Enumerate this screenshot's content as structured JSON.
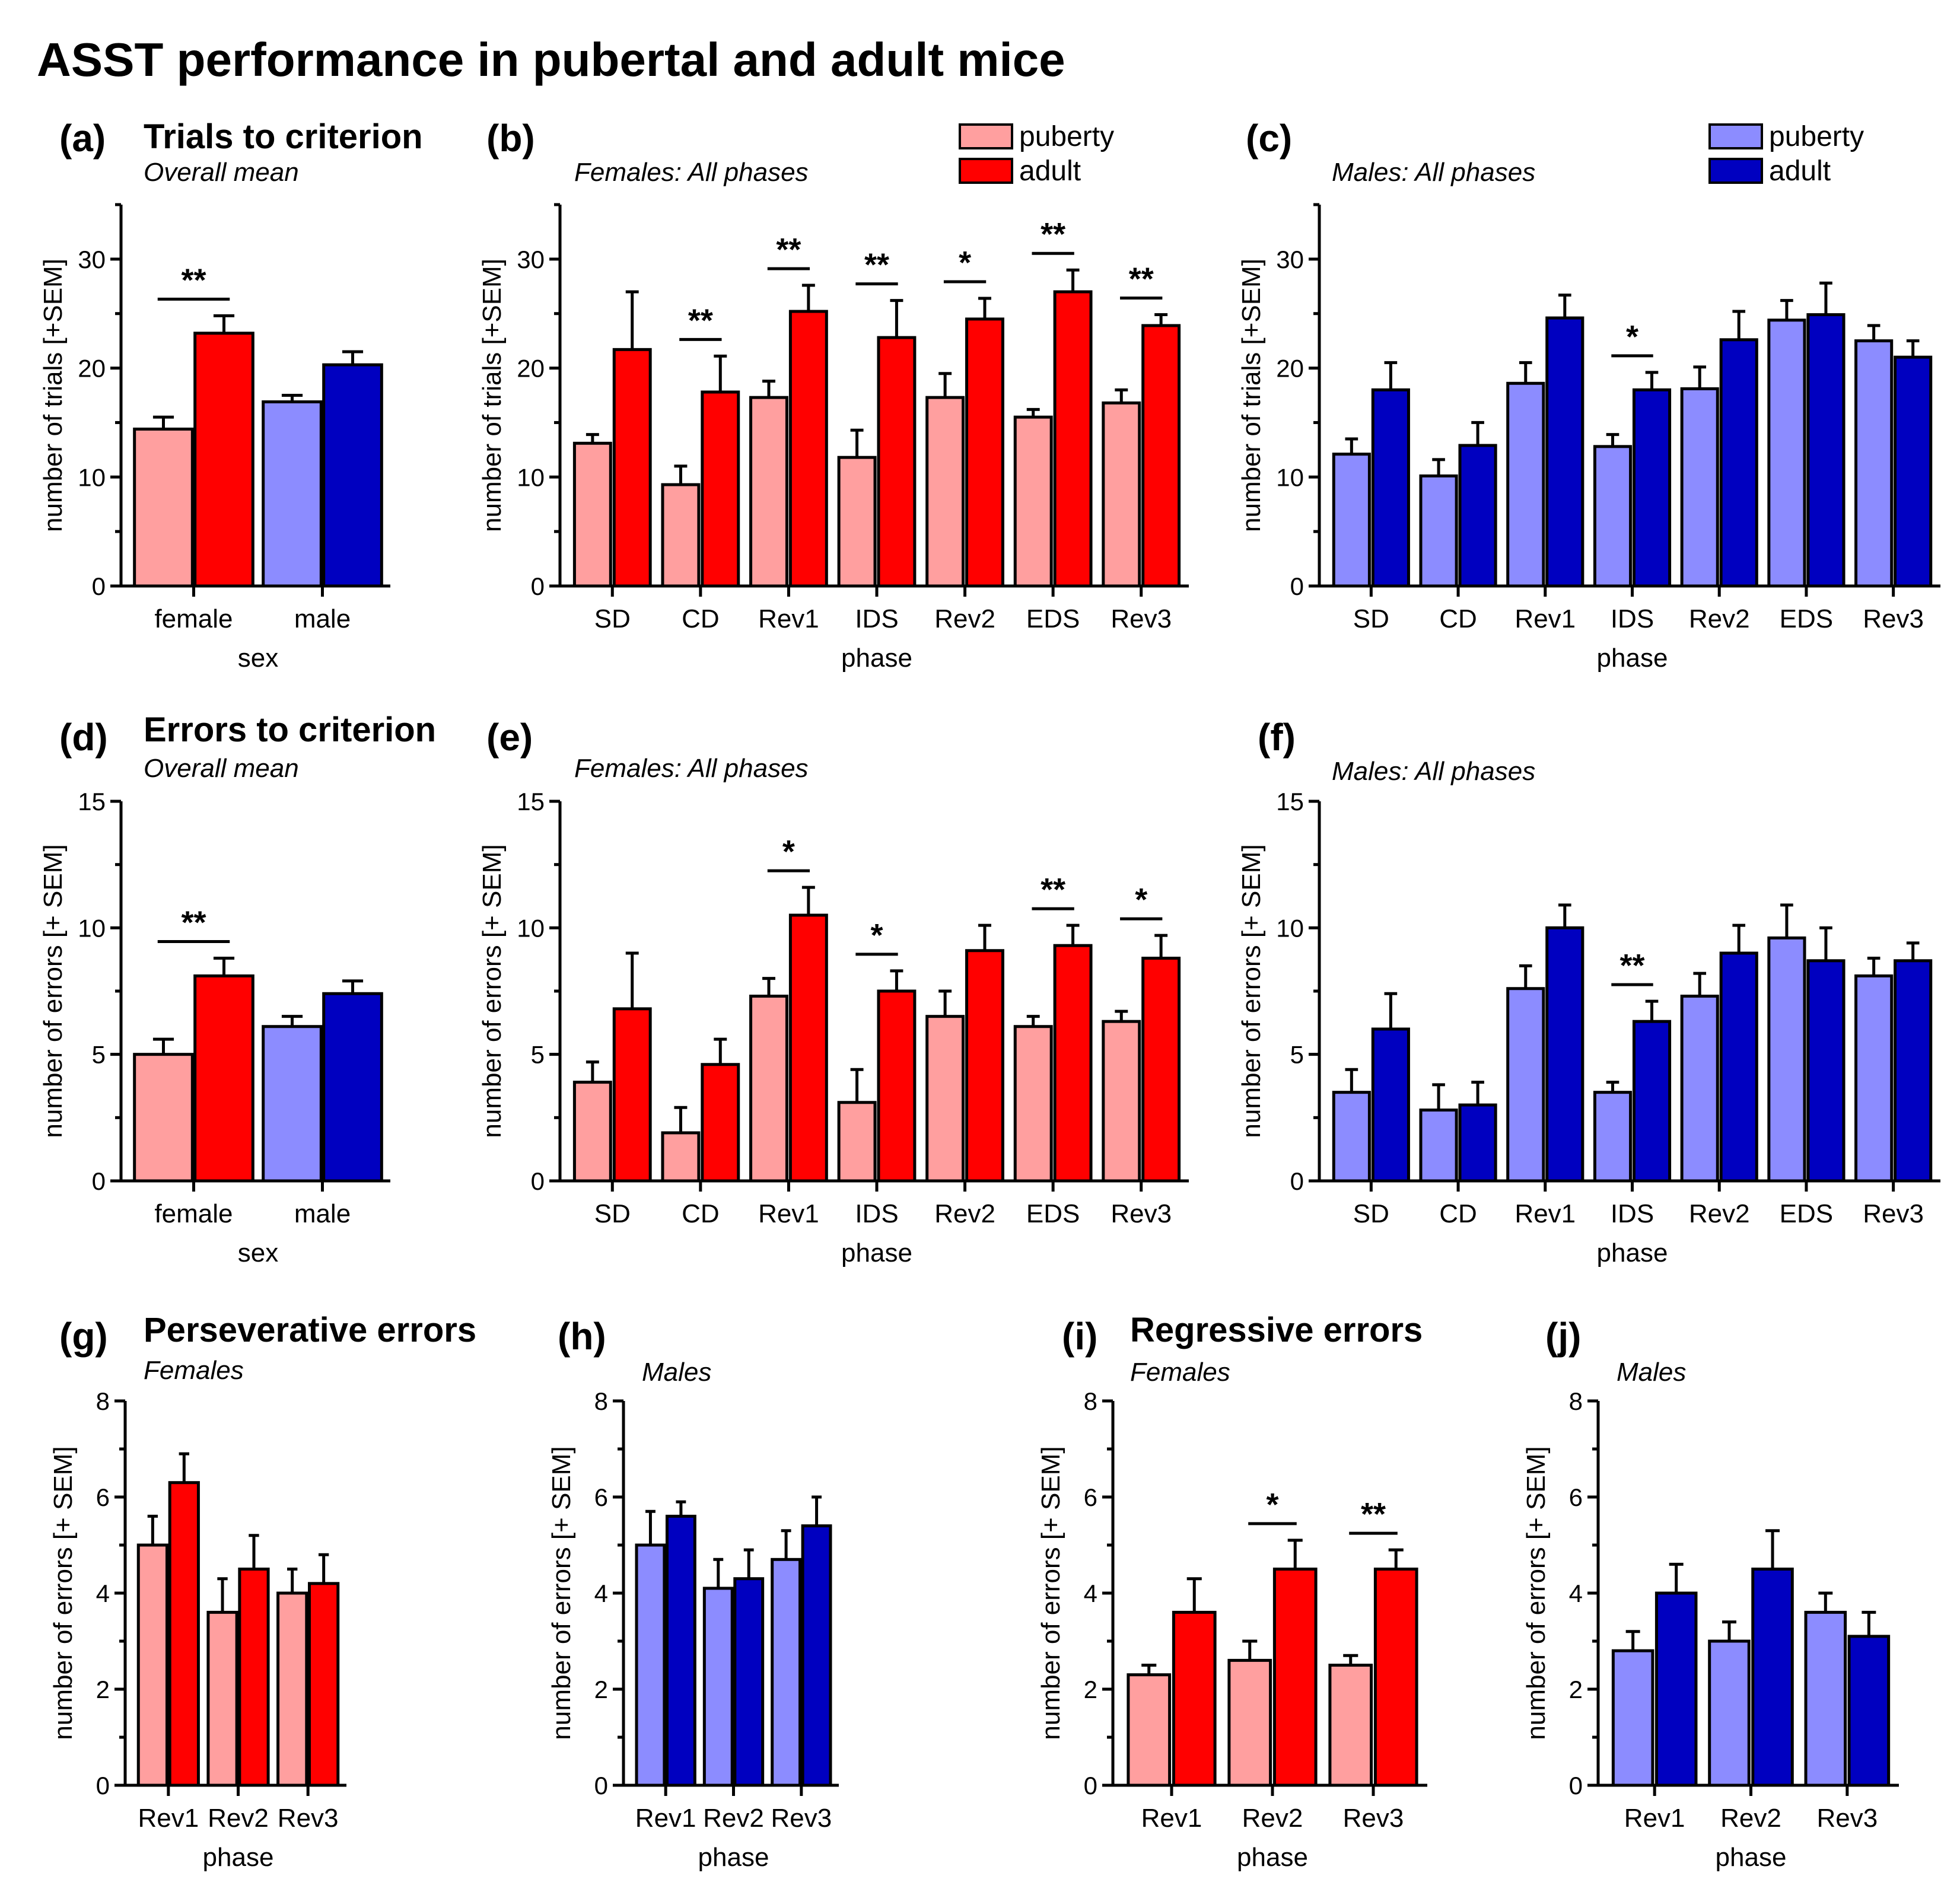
{
  "title": "ASST performance in pubertal and adult mice",
  "colors": {
    "female_puberty": "#ff9f9f",
    "female_adult": "#ff0000",
    "male_puberty": "#8c8cff",
    "male_adult": "#0000c0"
  },
  "legends": [
    {
      "panel": "b",
      "entries": [
        {
          "label": "puberty",
          "color_key": "female_puberty"
        },
        {
          "label": "adult",
          "color_key": "female_adult"
        }
      ]
    },
    {
      "panel": "c",
      "entries": [
        {
          "label": "puberty",
          "color_key": "male_puberty"
        },
        {
          "label": "adult",
          "color_key": "male_adult"
        }
      ]
    }
  ],
  "section_titles": [
    {
      "panel": "a",
      "text": "Trials to criterion"
    },
    {
      "panel": "d",
      "text": "Errors to criterion"
    },
    {
      "panel": "g",
      "text": "Perseverative errors"
    },
    {
      "panel": "i",
      "text": "Regressive errors"
    }
  ],
  "chart_data": [
    {
      "id": "a",
      "letter": "(a)",
      "type": "bar",
      "subtitle": "Overall mean",
      "xlabel": "sex",
      "ylabel": "number of trials [+SEM]",
      "ylim": [
        0,
        35
      ],
      "yticks": [
        0,
        10,
        20,
        30
      ],
      "categories": [
        "female",
        "male"
      ],
      "series": [
        {
          "name": "puberty",
          "values": [
            14.4,
            16.9
          ],
          "sem": [
            1.1,
            0.6
          ],
          "color_keys": [
            "female_puberty",
            "male_puberty"
          ]
        },
        {
          "name": "adult",
          "values": [
            23.2,
            20.3
          ],
          "sem": [
            1.6,
            1.2
          ],
          "color_keys": [
            "female_adult",
            "male_adult"
          ]
        }
      ],
      "significance": [
        {
          "category_index": 0,
          "label": "**"
        }
      ]
    },
    {
      "id": "b",
      "letter": "(b)",
      "type": "bar",
      "subtitle": "Females: All phases",
      "xlabel": "phase",
      "ylabel": "number of trials [+SEM]",
      "ylim": [
        0,
        35
      ],
      "yticks": [
        0,
        10,
        20,
        30
      ],
      "categories": [
        "SD",
        "CD",
        "Rev1",
        "IDS",
        "Rev2",
        "EDS",
        "Rev3"
      ],
      "series": [
        {
          "name": "puberty",
          "values": [
            13.1,
            9.3,
            17.3,
            11.8,
            17.3,
            15.5,
            16.8
          ],
          "sem": [
            0.8,
            1.7,
            1.5,
            2.5,
            2.2,
            0.7,
            1.2
          ],
          "color_key": "female_puberty"
        },
        {
          "name": "adult",
          "values": [
            21.7,
            17.8,
            25.2,
            22.8,
            24.5,
            27.0,
            23.9
          ],
          "sem": [
            5.3,
            3.3,
            2.4,
            3.4,
            1.9,
            2.0,
            1.0
          ],
          "color_key": "female_adult"
        }
      ],
      "significance": [
        {
          "category_index": 1,
          "label": "**"
        },
        {
          "category_index": 2,
          "label": "**"
        },
        {
          "category_index": 3,
          "label": "**"
        },
        {
          "category_index": 4,
          "label": "*"
        },
        {
          "category_index": 5,
          "label": "**"
        },
        {
          "category_index": 6,
          "label": "**"
        }
      ]
    },
    {
      "id": "c",
      "letter": "(c)",
      "type": "bar",
      "subtitle": "Males: All phases",
      "xlabel": "phase",
      "ylabel": "number of trials [+SEM]",
      "ylim": [
        0,
        35
      ],
      "yticks": [
        0,
        10,
        20,
        30
      ],
      "categories": [
        "SD",
        "CD",
        "Rev1",
        "IDS",
        "Rev2",
        "EDS",
        "Rev3"
      ],
      "series": [
        {
          "name": "puberty",
          "values": [
            12.1,
            10.1,
            18.6,
            12.8,
            18.1,
            24.4,
            22.5
          ],
          "sem": [
            1.4,
            1.5,
            1.9,
            1.1,
            2.0,
            1.8,
            1.4
          ],
          "color_key": "male_puberty"
        },
        {
          "name": "adult",
          "values": [
            18.0,
            12.9,
            24.6,
            18.0,
            22.6,
            24.9,
            21.0
          ],
          "sem": [
            2.5,
            2.1,
            2.1,
            1.6,
            2.6,
            2.9,
            1.5
          ],
          "color_key": "male_adult"
        }
      ],
      "significance": [
        {
          "category_index": 3,
          "label": "*"
        }
      ]
    },
    {
      "id": "d",
      "letter": "(d)",
      "type": "bar",
      "subtitle": "Overall mean",
      "xlabel": "sex",
      "ylabel": "number of errors [+ SEM]",
      "ylim": [
        0,
        15
      ],
      "yticks": [
        0,
        5,
        10,
        15
      ],
      "categories": [
        "female",
        "male"
      ],
      "series": [
        {
          "name": "puberty",
          "values": [
            5.0,
            6.1
          ],
          "sem": [
            0.6,
            0.4
          ],
          "color_keys": [
            "female_puberty",
            "male_puberty"
          ]
        },
        {
          "name": "adult",
          "values": [
            8.1,
            7.4
          ],
          "sem": [
            0.7,
            0.5
          ],
          "color_keys": [
            "female_adult",
            "male_adult"
          ]
        }
      ],
      "significance": [
        {
          "category_index": 0,
          "label": "**"
        }
      ]
    },
    {
      "id": "e",
      "letter": "(e)",
      "type": "bar",
      "subtitle": "Females: All phases",
      "xlabel": "phase",
      "ylabel": "number of errors [+ SEM]",
      "ylim": [
        0,
        15
      ],
      "yticks": [
        0,
        5,
        10,
        15
      ],
      "categories": [
        "SD",
        "CD",
        "Rev1",
        "IDS",
        "Rev2",
        "EDS",
        "Rev3"
      ],
      "series": [
        {
          "name": "puberty",
          "values": [
            3.9,
            1.9,
            7.3,
            3.1,
            6.5,
            6.1,
            6.3
          ],
          "sem": [
            0.8,
            1.0,
            0.7,
            1.3,
            1.0,
            0.4,
            0.4
          ],
          "color_key": "female_puberty"
        },
        {
          "name": "adult",
          "values": [
            6.8,
            4.6,
            10.5,
            7.5,
            9.1,
            9.3,
            8.8
          ],
          "sem": [
            2.2,
            1.0,
            1.1,
            0.8,
            1.0,
            0.8,
            0.9
          ],
          "color_key": "female_adult"
        }
      ],
      "significance": [
        {
          "category_index": 2,
          "label": "*"
        },
        {
          "category_index": 3,
          "label": "*"
        },
        {
          "category_index": 5,
          "label": "**"
        },
        {
          "category_index": 6,
          "label": "*"
        }
      ]
    },
    {
      "id": "f",
      "letter": "(f)",
      "type": "bar",
      "subtitle": "Males: All phases",
      "xlabel": "phase",
      "ylabel": "number of errors [+ SEM]",
      "ylim": [
        0,
        15
      ],
      "yticks": [
        0,
        5,
        10,
        15
      ],
      "categories": [
        "SD",
        "CD",
        "Rev1",
        "IDS",
        "Rev2",
        "EDS",
        "Rev3"
      ],
      "series": [
        {
          "name": "puberty",
          "values": [
            3.5,
            2.8,
            7.6,
            3.5,
            7.3,
            9.6,
            8.1
          ],
          "sem": [
            0.9,
            1.0,
            0.9,
            0.4,
            0.9,
            1.3,
            0.7
          ],
          "color_key": "male_puberty"
        },
        {
          "name": "adult",
          "values": [
            6.0,
            3.0,
            10.0,
            6.3,
            9.0,
            8.7,
            8.7
          ],
          "sem": [
            1.4,
            0.9,
            0.9,
            0.8,
            1.1,
            1.3,
            0.7
          ],
          "color_key": "male_adult"
        }
      ],
      "significance": [
        {
          "category_index": 3,
          "label": "**"
        }
      ]
    },
    {
      "id": "g",
      "letter": "(g)",
      "type": "bar",
      "subtitle": "Females",
      "xlabel": "phase",
      "ylabel": "number of errors [+ SEM]",
      "ylim": [
        0,
        8
      ],
      "yticks": [
        0,
        2,
        4,
        6,
        8
      ],
      "categories": [
        "Rev1",
        "Rev2",
        "Rev3"
      ],
      "series": [
        {
          "name": "puberty",
          "values": [
            5.0,
            3.6,
            4.0
          ],
          "sem": [
            0.6,
            0.7,
            0.5
          ],
          "color_key": "female_puberty"
        },
        {
          "name": "adult",
          "values": [
            6.3,
            4.5,
            4.2
          ],
          "sem": [
            0.6,
            0.7,
            0.6
          ],
          "color_key": "female_adult"
        }
      ],
      "significance": []
    },
    {
      "id": "h",
      "letter": "(h)",
      "type": "bar",
      "subtitle": "Males",
      "xlabel": "phase",
      "ylabel": "number of errors [+ SEM]",
      "ylim": [
        0,
        8
      ],
      "yticks": [
        0,
        2,
        4,
        6,
        8
      ],
      "categories": [
        "Rev1",
        "Rev2",
        "Rev3"
      ],
      "series": [
        {
          "name": "puberty",
          "values": [
            5.0,
            4.1,
            4.7
          ],
          "sem": [
            0.7,
            0.6,
            0.6
          ],
          "color_key": "male_puberty"
        },
        {
          "name": "adult",
          "values": [
            5.6,
            4.3,
            5.4
          ],
          "sem": [
            0.3,
            0.6,
            0.6
          ],
          "color_key": "male_adult"
        }
      ],
      "significance": []
    },
    {
      "id": "i",
      "letter": "(i)",
      "type": "bar",
      "subtitle": "Females",
      "xlabel": "phase",
      "ylabel": "number of errors [+ SEM]",
      "ylim": [
        0,
        8
      ],
      "yticks": [
        0,
        2,
        4,
        6,
        8
      ],
      "categories": [
        "Rev1",
        "Rev2",
        "Rev3"
      ],
      "series": [
        {
          "name": "puberty",
          "values": [
            2.3,
            2.6,
            2.5
          ],
          "sem": [
            0.2,
            0.4,
            0.2
          ],
          "color_key": "female_puberty"
        },
        {
          "name": "adult",
          "values": [
            3.6,
            4.5,
            4.5
          ],
          "sem": [
            0.7,
            0.6,
            0.4
          ],
          "color_key": "female_adult"
        }
      ],
      "significance": [
        {
          "category_index": 1,
          "label": "*"
        },
        {
          "category_index": 2,
          "label": "**"
        }
      ]
    },
    {
      "id": "j",
      "letter": "(j)",
      "type": "bar",
      "subtitle": "Males",
      "xlabel": "phase",
      "ylabel": "number of errors [+ SEM]",
      "ylim": [
        0,
        8
      ],
      "yticks": [
        0,
        2,
        4,
        6,
        8
      ],
      "categories": [
        "Rev1",
        "Rev2",
        "Rev3"
      ],
      "series": [
        {
          "name": "puberty",
          "values": [
            2.8,
            3.0,
            3.6
          ],
          "sem": [
            0.4,
            0.4,
            0.4
          ],
          "color_key": "male_puberty"
        },
        {
          "name": "adult",
          "values": [
            4.0,
            4.5,
            3.1
          ],
          "sem": [
            0.6,
            0.8,
            0.5
          ],
          "color_key": "male_adult"
        }
      ],
      "significance": []
    }
  ]
}
